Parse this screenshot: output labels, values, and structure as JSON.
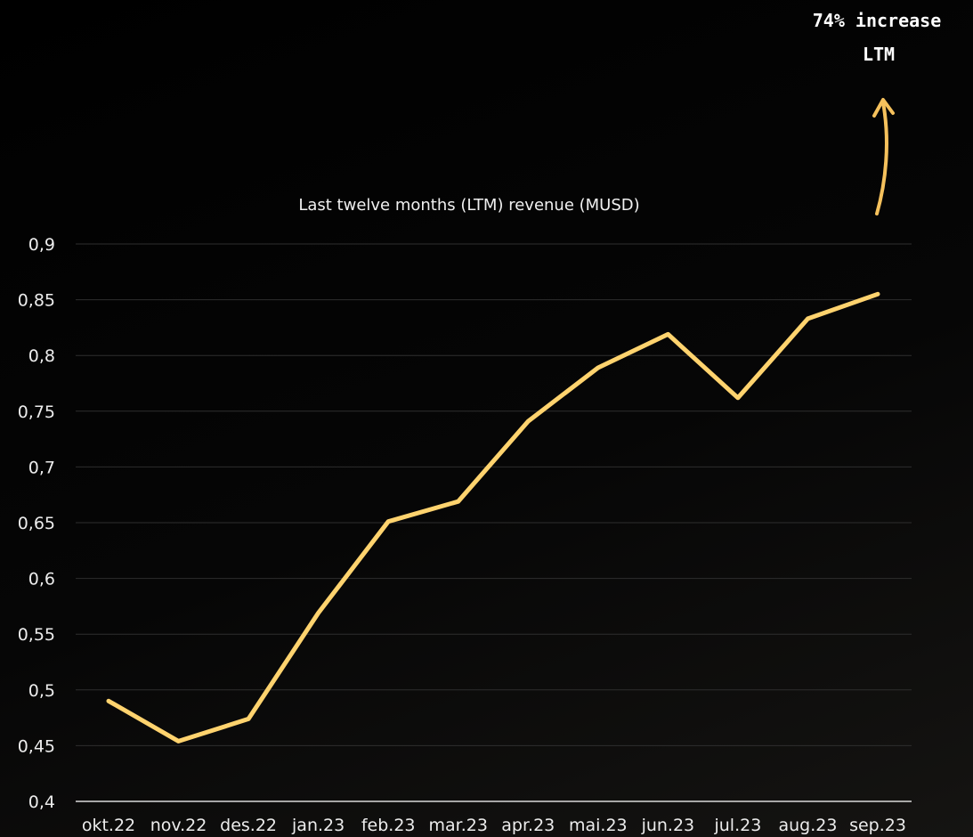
{
  "chart_data": {
    "type": "line",
    "title": "Last twelve months (LTM) revenue (MUSD)",
    "xlabel": "",
    "ylabel": "",
    "categories": [
      "okt.22",
      "nov.22",
      "des.22",
      "jan.23",
      "feb.23",
      "mar.23",
      "apr.23",
      "mai.23",
      "jun.23",
      "jul.23",
      "aug.23",
      "sep.23"
    ],
    "series": [
      {
        "values": [
          0.49,
          0.454,
          0.474,
          0.569,
          0.651,
          0.669,
          0.741,
          0.789,
          0.819,
          0.762,
          0.833,
          0.855
        ]
      }
    ],
    "ylim": [
      0.4,
      0.9
    ],
    "yticks": [
      0.4,
      0.45,
      0.5,
      0.55,
      0.6,
      0.65,
      0.7,
      0.75,
      0.8,
      0.85,
      0.9
    ],
    "ytick_labels": [
      "0,4",
      "0,45",
      "0,5",
      "0,55",
      "0,6",
      "0,65",
      "0,7",
      "0,75",
      "0,8",
      "0,85",
      "0,9"
    ],
    "grid": true,
    "legend": "none",
    "annotation": {
      "line1": "74% increase",
      "line2": "LTM"
    },
    "colors": {
      "line": "#ffd36e",
      "arrow": "#f5c15c",
      "grid": "#2e2e2e",
      "axis": "#d9d9d9",
      "text": "#ececec",
      "background": "#000000"
    }
  }
}
